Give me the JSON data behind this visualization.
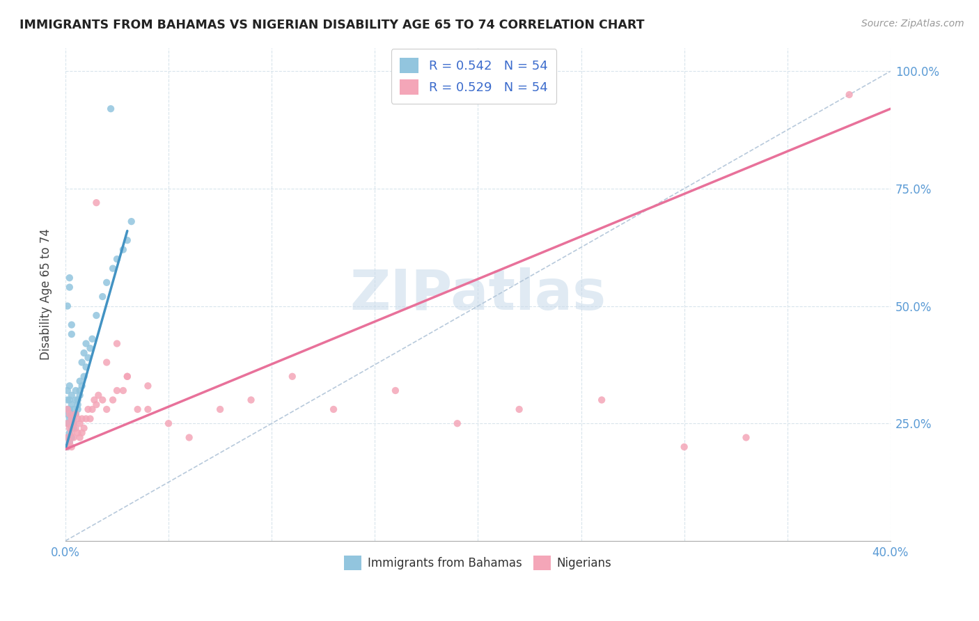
{
  "title": "IMMIGRANTS FROM BAHAMAS VS NIGERIAN DISABILITY AGE 65 TO 74 CORRELATION CHART",
  "source": "Source: ZipAtlas.com",
  "ylabel": "Disability Age 65 to 74",
  "yticks": [
    0.0,
    0.25,
    0.5,
    0.75,
    1.0
  ],
  "ytick_labels": [
    "",
    "25.0%",
    "50.0%",
    "75.0%",
    "100.0%"
  ],
  "xmin": 0.0,
  "xmax": 0.4,
  "ymin": 0.0,
  "ymax": 1.05,
  "legend_blue_r": "R = 0.542",
  "legend_blue_n": "N = 54",
  "legend_pink_r": "R = 0.529",
  "legend_pink_n": "N = 54",
  "label_blue": "Immigrants from Bahamas",
  "label_pink": "Nigerians",
  "color_blue": "#92c5de",
  "color_pink": "#f4a6b8",
  "color_blue_line": "#4393c3",
  "color_pink_line": "#e8719a",
  "watermark": "ZIPatlas",
  "blue_line_x": [
    0.0,
    0.03
  ],
  "blue_line_y": [
    0.195,
    0.66
  ],
  "pink_line_x": [
    0.0,
    0.4
  ],
  "pink_line_y": [
    0.195,
    0.92
  ],
  "diag_line_x": [
    0.0,
    0.4
  ],
  "diag_line_y": [
    0.0,
    1.0
  ],
  "blue_x": [
    0.001,
    0.001,
    0.001,
    0.001,
    0.001,
    0.002,
    0.002,
    0.002,
    0.002,
    0.003,
    0.003,
    0.003,
    0.004,
    0.004,
    0.004,
    0.005,
    0.005,
    0.006,
    0.006,
    0.007,
    0.007,
    0.008,
    0.009,
    0.01,
    0.001,
    0.001,
    0.002,
    0.002,
    0.003,
    0.003,
    0.004,
    0.005,
    0.006,
    0.007,
    0.008,
    0.009,
    0.01,
    0.011,
    0.012,
    0.013,
    0.015,
    0.018,
    0.02,
    0.023,
    0.025,
    0.028,
    0.03,
    0.032,
    0.001,
    0.002,
    0.002,
    0.003,
    0.003,
    0.022
  ],
  "blue_y": [
    0.3,
    0.27,
    0.25,
    0.28,
    0.32,
    0.28,
    0.26,
    0.3,
    0.33,
    0.27,
    0.29,
    0.31,
    0.28,
    0.26,
    0.24,
    0.3,
    0.32,
    0.28,
    0.3,
    0.32,
    0.34,
    0.38,
    0.4,
    0.42,
    0.22,
    0.2,
    0.23,
    0.21,
    0.24,
    0.22,
    0.25,
    0.27,
    0.29,
    0.31,
    0.33,
    0.35,
    0.37,
    0.39,
    0.41,
    0.43,
    0.48,
    0.52,
    0.55,
    0.58,
    0.6,
    0.62,
    0.64,
    0.68,
    0.5,
    0.54,
    0.56,
    0.44,
    0.46,
    0.92
  ],
  "pink_x": [
    0.001,
    0.001,
    0.001,
    0.001,
    0.002,
    0.002,
    0.002,
    0.003,
    0.003,
    0.003,
    0.004,
    0.004,
    0.005,
    0.005,
    0.006,
    0.006,
    0.007,
    0.007,
    0.008,
    0.008,
    0.009,
    0.01,
    0.011,
    0.012,
    0.013,
    0.014,
    0.015,
    0.016,
    0.018,
    0.02,
    0.023,
    0.025,
    0.028,
    0.03,
    0.035,
    0.04,
    0.05,
    0.06,
    0.075,
    0.09,
    0.11,
    0.13,
    0.16,
    0.19,
    0.22,
    0.26,
    0.3,
    0.33,
    0.02,
    0.025,
    0.03,
    0.04,
    0.015,
    0.38
  ],
  "pink_y": [
    0.28,
    0.25,
    0.22,
    0.2,
    0.27,
    0.24,
    0.21,
    0.26,
    0.23,
    0.2,
    0.25,
    0.22,
    0.27,
    0.24,
    0.26,
    0.23,
    0.25,
    0.22,
    0.26,
    0.23,
    0.24,
    0.26,
    0.28,
    0.26,
    0.28,
    0.3,
    0.29,
    0.31,
    0.3,
    0.28,
    0.3,
    0.32,
    0.32,
    0.35,
    0.28,
    0.33,
    0.25,
    0.22,
    0.28,
    0.3,
    0.35,
    0.28,
    0.32,
    0.25,
    0.28,
    0.3,
    0.2,
    0.22,
    0.38,
    0.42,
    0.35,
    0.28,
    0.72,
    0.95
  ]
}
